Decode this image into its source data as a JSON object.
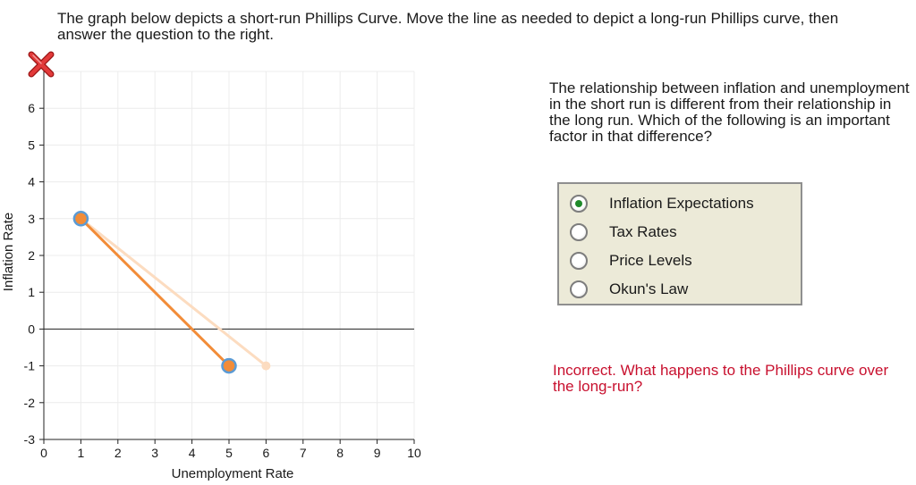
{
  "instructions": "The graph below depicts a short-run Phillips Curve. Move the line as needed to depict a long-run Phillips curve, then answer the question to the right.",
  "reset_icon": "red-x-delete-icon",
  "question": "The relationship between inflation and unemployment in the short run is different from their relationship in the long run. Which of the following is an important factor in that difference?",
  "options": [
    {
      "label": "Inflation Expectations",
      "selected": true
    },
    {
      "label": "Tax Rates",
      "selected": false
    },
    {
      "label": "Price Levels",
      "selected": false
    },
    {
      "label": "Okun's Law",
      "selected": false
    }
  ],
  "feedback": "Incorrect. What happens to the Phillips curve over the long-run?",
  "colors": {
    "line": "#f28c38",
    "original_line": "#fcdcc0",
    "handle_ring": "#5b9bd5",
    "feedback": "#c8102e",
    "selected_radio": "#1f8a2a"
  },
  "chart_data": {
    "type": "line",
    "xlabel": "Unemployment Rate",
    "ylabel": "Inflation Rate",
    "xlim": [
      0,
      10
    ],
    "ylim": [
      -3,
      7
    ],
    "xticks": [
      "0",
      "1",
      "2",
      "3",
      "4",
      "5",
      "6",
      "7",
      "8",
      "9",
      "10"
    ],
    "yticks": [
      "-3",
      "-2",
      "-1",
      "0",
      "1",
      "2",
      "3",
      "4",
      "5",
      "6"
    ],
    "grid": true,
    "series": [
      {
        "role": "original",
        "points": [
          [
            1,
            3
          ],
          [
            6,
            -1
          ]
        ]
      },
      {
        "role": "current",
        "points": [
          [
            1,
            3
          ],
          [
            5,
            -1
          ]
        ]
      }
    ]
  }
}
